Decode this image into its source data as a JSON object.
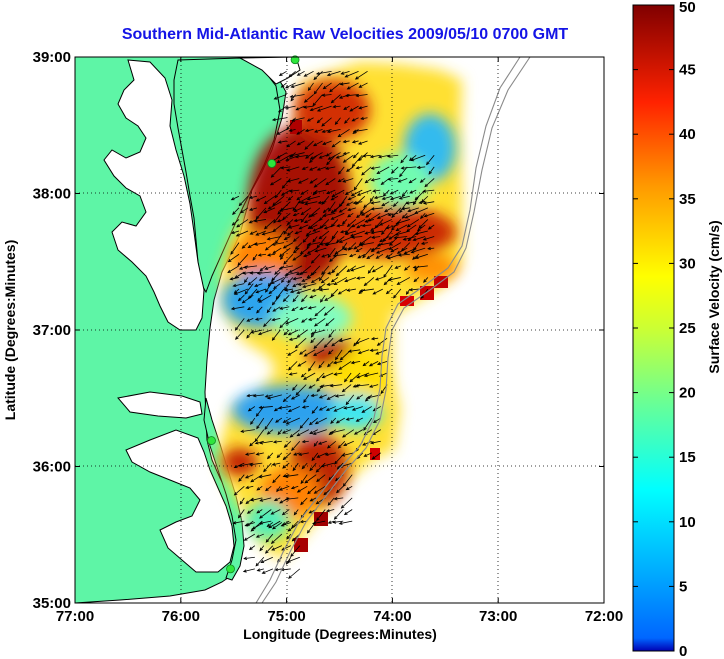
{
  "title": "Southern Mid-Atlantic Raw Velocities 2009/05/10 0700 GMT",
  "map": {
    "xlabel": "Longitude (Degrees:Minutes)",
    "ylabel": "Latitude (Degrees:Minutes)",
    "lon_range": [
      -77,
      -72
    ],
    "lat_range": [
      35,
      39
    ],
    "x_ticks": [
      "77:00",
      "76:00",
      "75:00",
      "74:00",
      "73:00",
      "72:00"
    ],
    "y_ticks": [
      "39:00",
      "38:00",
      "37:00",
      "36:00",
      "35:00"
    ],
    "grid": "dotted",
    "land_color": "#5ef5a6",
    "coastline_color": "#000000",
    "bathymetry_color": "#8a8a8a",
    "station_color": "#2ee63c",
    "stations": [
      {
        "lon": -74.92,
        "lat": 38.98
      },
      {
        "lon": -75.14,
        "lat": 38.22
      },
      {
        "lon": -75.71,
        "lat": 36.19
      },
      {
        "lon": -75.53,
        "lat": 35.25
      }
    ]
  },
  "colorbar": {
    "label": "Surface Velocity (cm/s)",
    "min": 0,
    "max": 50,
    "ticks": [
      "0",
      "5",
      "10",
      "15",
      "20",
      "25",
      "30",
      "35",
      "40",
      "45",
      "50"
    ],
    "colormap": "jet"
  }
}
